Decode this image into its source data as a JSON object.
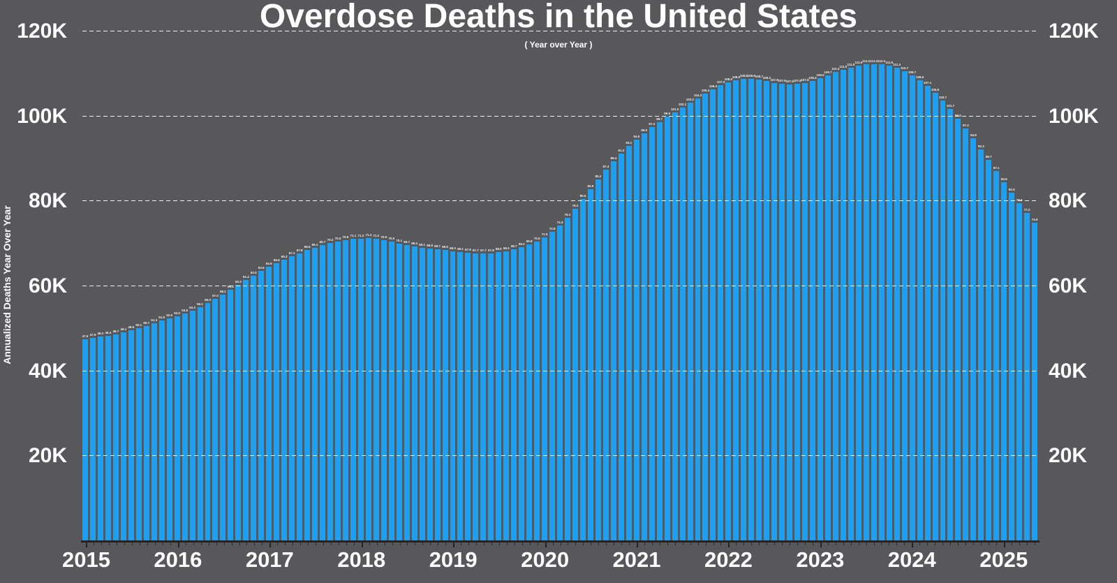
{
  "header": {
    "title": "Overdose Deaths in the United States",
    "subtitle": "( Year over Year )"
  },
  "axes": {
    "y_axis_title": "Annualized Deaths Year Over Year"
  },
  "colors": {
    "background": "#58585A",
    "bar": "#1E9FEF",
    "gridline": "#FFFFFF",
    "text": "#FFFFFF",
    "axis_line": "#242424"
  },
  "chart_data": {
    "type": "bar",
    "title": "Overdose Deaths in the United States",
    "subtitle": "( Year over Year )",
    "ylabel": "Annualized Deaths Year Over Year",
    "values_unit": "thousands of deaths (12-month rolling total)",
    "x_start": "2015-01",
    "x_end": "2025-05",
    "x_frequency": "monthly",
    "ymax": 120,
    "ylim": [
      0,
      120
    ],
    "yticks": [
      20,
      40,
      60,
      80,
      100,
      120
    ],
    "ytick_labels": [
      "20K",
      "40K",
      "60K",
      "80K",
      "100K",
      "120K"
    ],
    "years": [
      "2015",
      "2016",
      "2017",
      "2018",
      "2019",
      "2020",
      "2021",
      "2022",
      "2023",
      "2024",
      "2025"
    ],
    "grid": true,
    "legend": false,
    "bar_color": "#1E9FEF",
    "values": [
      47.5,
      47.9,
      48.2,
      48.4,
      48.7,
      49.1,
      49.6,
      50.1,
      50.7,
      51.3,
      51.9,
      52.5,
      53.0,
      53.6,
      54.3,
      55.1,
      56.0,
      57.0,
      58.1,
      59.2,
      60.3,
      61.4,
      62.5,
      63.6,
      64.6,
      65.5,
      66.3,
      67.1,
      67.8,
      68.5,
      69.1,
      69.7,
      70.2,
      70.6,
      70.9,
      71.1,
      71.2,
      71.3,
      71.2,
      70.9,
      70.5,
      70.1,
      69.7,
      69.4,
      69.1,
      68.9,
      68.7,
      68.5,
      68.3,
      68.1,
      67.9,
      67.7,
      67.7,
      67.8,
      68.0,
      68.3,
      68.7,
      69.2,
      69.8,
      70.5,
      71.5,
      72.8,
      74.3,
      76.1,
      78.2,
      80.5,
      82.9,
      85.2,
      87.4,
      89.4,
      91.3,
      93.1,
      94.6,
      96.0,
      97.4,
      98.7,
      99.9,
      101.0,
      102.1,
      103.2,
      104.3,
      105.4,
      106.4,
      107.3,
      108.0,
      108.5,
      108.8,
      108.9,
      108.7,
      108.3,
      107.9,
      107.6,
      107.5,
      107.6,
      107.9,
      108.4,
      109.0,
      109.7,
      110.4,
      111.0,
      111.5,
      111.9,
      112.2,
      112.3,
      112.2,
      111.9,
      111.4,
      110.7,
      109.7,
      108.5,
      107.1,
      105.5,
      103.7,
      101.7,
      99.5,
      97.2,
      94.8,
      92.3,
      89.7,
      87.1,
      84.5,
      82.0,
      79.6,
      77.2,
      74.9
    ]
  }
}
